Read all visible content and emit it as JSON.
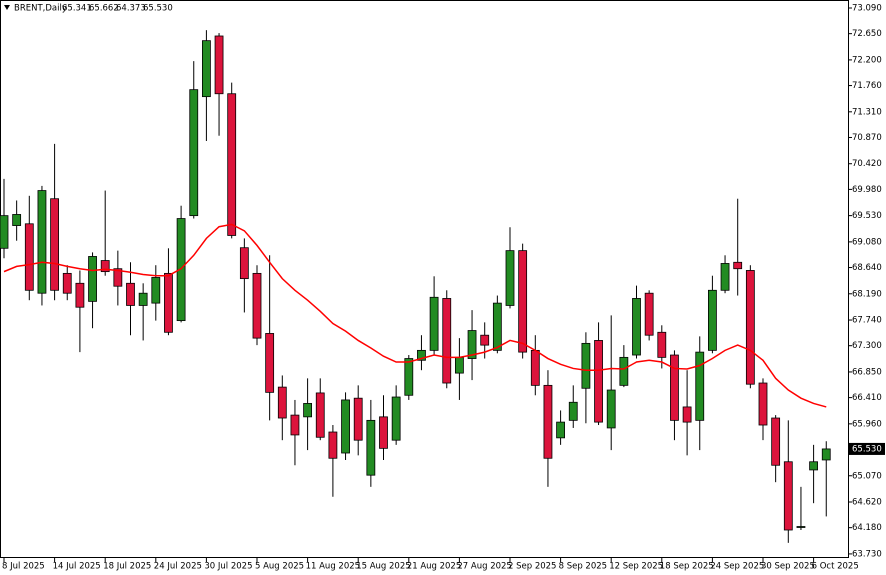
{
  "chart_data": {
    "type": "candlestick",
    "header": {
      "symbol": "BRENT,Daily",
      "values": [
        65.341,
        65.662,
        64.373,
        65.53
      ],
      "value_labels": [
        "65.341",
        "65.662",
        "64.373",
        "65.530"
      ]
    },
    "categories": [
      "8 Jul 2025",
      null,
      null,
      null,
      "14 Jul 2025",
      null,
      null,
      null,
      "18 Jul 2025",
      null,
      null,
      null,
      "24 Jul 2025",
      null,
      null,
      null,
      "30 Jul 2025",
      null,
      null,
      null,
      "5 Aug 2025",
      null,
      null,
      null,
      "11 Aug 2025",
      null,
      null,
      null,
      "15 Aug 2025",
      null,
      null,
      null,
      "21 Aug 2025",
      null,
      null,
      null,
      "27 Aug 2025",
      null,
      null,
      null,
      "2 Sep 2025",
      null,
      null,
      null,
      "8 Sep 2025",
      null,
      null,
      null,
      "12 Sep 2025",
      null,
      null,
      null,
      "18 Sep 2025",
      null,
      null,
      null,
      "24 Sep 2025",
      null,
      null,
      null,
      "30 Sep 2025",
      null,
      null,
      null,
      "6 Oct 2025",
      null
    ],
    "open": [
      68.97,
      69.36,
      69.39,
      68.2,
      69.82,
      68.54,
      68.37,
      68.06,
      68.76,
      68.62,
      68.37,
      67.99,
      68.03,
      68.54,
      67.73,
      69.53,
      71.57,
      72.61,
      71.62,
      68.98,
      68.54,
      67.51,
      66.59,
      66.11,
      66.08,
      66.49,
      65.82,
      65.46,
      66.4,
      65.08,
      66.08,
      65.68,
      66.45,
      67.05,
      67.22,
      68.11,
      66.83,
      67.08,
      67.48,
      67.22,
      67.99,
      68.93,
      67.22,
      66.62,
      65.72,
      66.02,
      66.57,
      67.39,
      65.89,
      66.62,
      67.14,
      68.2,
      67.53,
      67.14,
      66.25,
      66.02,
      67.22,
      68.25,
      68.73,
      68.59,
      66.66,
      66.06,
      65.31,
      64.19,
      65.17,
      65.341
    ],
    "high": [
      70.16,
      69.79,
      69.87,
      70.04,
      70.76,
      68.68,
      68.59,
      68.9,
      69.96,
      68.93,
      68.73,
      68.37,
      68.68,
      68.97,
      69.7,
      72.18,
      72.71,
      72.66,
      71.81,
      69.14,
      68.68,
      68.85,
      66.79,
      66.37,
      66.74,
      66.74,
      65.94,
      66.5,
      66.62,
      66.37,
      66.45,
      66.62,
      67.14,
      67.48,
      68.49,
      68.25,
      67.43,
      67.91,
      67.7,
      68.16,
      69.33,
      69.05,
      67.48,
      66.88,
      66.19,
      66.62,
      67.53,
      67.7,
      67.82,
      67.31,
      68.33,
      68.25,
      67.65,
      67.22,
      66.88,
      67.46,
      68.5,
      68.85,
      69.82,
      68.68,
      66.74,
      66.11,
      66.02,
      64.88,
      65.6,
      65.662
    ],
    "low": [
      68.8,
      69.1,
      68.08,
      67.99,
      68.08,
      68.08,
      67.19,
      67.6,
      68.5,
      67.99,
      67.48,
      67.39,
      67.73,
      67.48,
      67.7,
      69.48,
      70.81,
      70.9,
      69.14,
      67.87,
      67.31,
      66.02,
      65.68,
      65.25,
      65.51,
      65.68,
      64.71,
      65.34,
      65.42,
      64.88,
      65.34,
      65.6,
      66.37,
      66.88,
      67.14,
      66.57,
      66.37,
      66.71,
      67.08,
      67.17,
      67.94,
      67.08,
      66.45,
      64.88,
      65.6,
      65.89,
      65.97,
      65.94,
      65.51,
      66.59,
      67.08,
      67.39,
      66.91,
      65.68,
      65.42,
      65.51,
      67.17,
      68.2,
      68.16,
      66.57,
      65.68,
      64.96,
      63.92,
      64.14,
      64.6,
      64.373
    ],
    "close": [
      69.53,
      69.55,
      68.25,
      69.96,
      68.25,
      68.2,
      67.96,
      68.83,
      68.57,
      68.32,
      67.99,
      68.2,
      68.47,
      67.53,
      69.48,
      71.69,
      72.53,
      71.62,
      69.19,
      68.45,
      67.43,
      66.5,
      66.06,
      65.77,
      66.31,
      65.73,
      65.37,
      66.37,
      65.68,
      66.02,
      65.54,
      66.42,
      67.08,
      67.22,
      68.13,
      66.66,
      67.1,
      67.56,
      67.31,
      68.03,
      68.93,
      67.19,
      66.62,
      65.37,
      65.99,
      66.33,
      67.34,
      65.99,
      66.54,
      67.1,
      68.11,
      67.48,
      67.1,
      66.02,
      65.99,
      67.19,
      68.25,
      68.71,
      68.62,
      66.64,
      65.94,
      65.25,
      64.14,
      64.2,
      65.31,
      65.53
    ],
    "up_color": "#228b22",
    "down_color": "#dc143c",
    "overlays": [
      {
        "type": "line",
        "color": "#ff0000",
        "values": [
          68.57,
          68.66,
          68.69,
          68.73,
          68.71,
          68.66,
          68.62,
          68.59,
          68.61,
          68.59,
          68.56,
          68.52,
          68.5,
          68.5,
          68.62,
          68.85,
          69.14,
          69.34,
          69.38,
          69.27,
          69.02,
          68.73,
          68.45,
          68.25,
          68.08,
          67.89,
          67.68,
          67.55,
          67.39,
          67.26,
          67.12,
          67.02,
          67.02,
          67.08,
          67.14,
          67.1,
          67.1,
          67.14,
          67.19,
          67.27,
          67.39,
          67.34,
          67.22,
          67.08,
          66.98,
          66.91,
          66.88,
          66.88,
          66.91,
          66.9,
          67.02,
          67.05,
          67.02,
          66.91,
          66.9,
          66.96,
          67.08,
          67.22,
          67.31,
          67.22,
          67.05,
          66.74,
          66.54,
          66.4,
          66.31,
          66.25
        ]
      }
    ],
    "last_price": {
      "value": 65.53,
      "label": "65.530"
    },
    "ylim": [
      63.66,
      73.21
    ],
    "yticks": [
      {
        "value": 73.09,
        "label": "73.090"
      },
      {
        "value": 72.65,
        "label": "72.650"
      },
      {
        "value": 72.2,
        "label": "72.200"
      },
      {
        "value": 71.76,
        "label": "71.760"
      },
      {
        "value": 71.31,
        "label": "71.310"
      },
      {
        "value": 70.87,
        "label": "70.870"
      },
      {
        "value": 70.42,
        "label": "70.420"
      },
      {
        "value": 69.98,
        "label": "69.980"
      },
      {
        "value": 69.53,
        "label": "69.530"
      },
      {
        "value": 69.08,
        "label": "69.080"
      },
      {
        "value": 68.64,
        "label": "68.640"
      },
      {
        "value": 68.19,
        "label": "68.190"
      },
      {
        "value": 67.74,
        "label": "67.740"
      },
      {
        "value": 67.3,
        "label": "67.300"
      },
      {
        "value": 66.85,
        "label": "66.850"
      },
      {
        "value": 66.41,
        "label": "66.410"
      },
      {
        "value": 65.96,
        "label": "65.960"
      },
      {
        "value": 65.07,
        "label": "65.070"
      },
      {
        "value": 64.62,
        "label": "64.620"
      },
      {
        "value": 64.18,
        "label": "64.180"
      },
      {
        "value": 63.73,
        "label": "63.730"
      }
    ],
    "grid": false
  }
}
